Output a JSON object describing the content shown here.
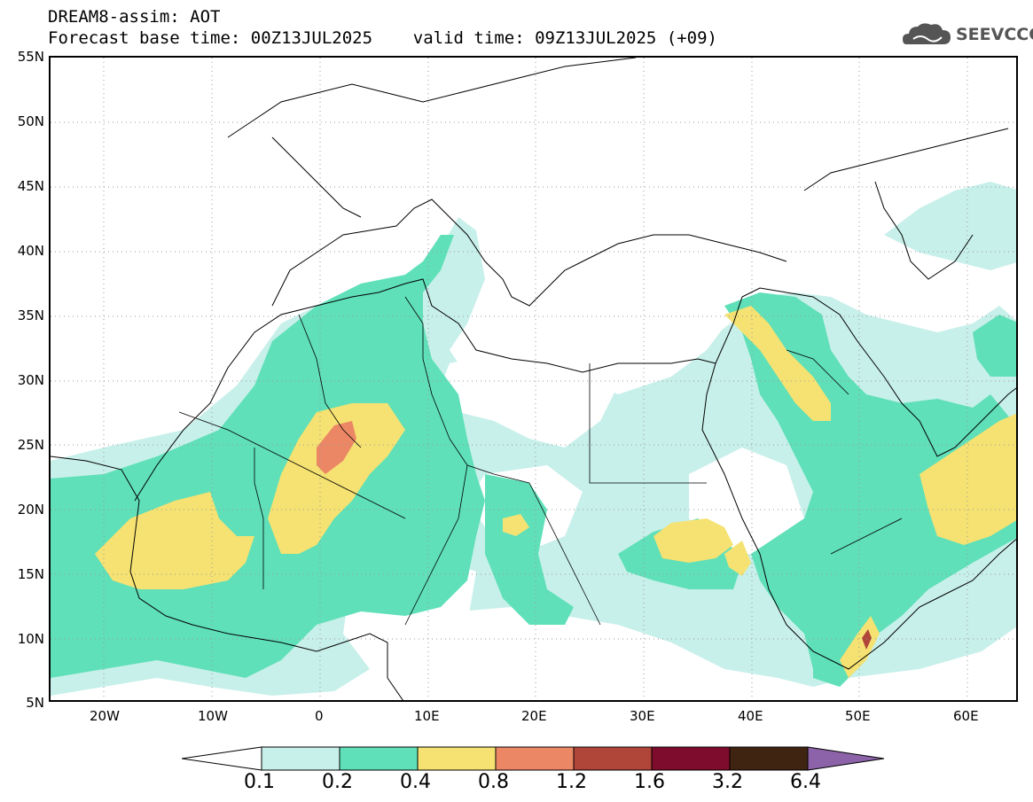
{
  "header": {
    "line1": "DREAM8-assim: AOT",
    "line2": "Forecast base time: 00Z13JUL2025    valid time: 09Z13JUL2025 (+09)"
  },
  "logo": {
    "text": "SEEVCCC",
    "icon": "cloud-icon"
  },
  "map": {
    "lat_labels": [
      "55N",
      "50N",
      "45N",
      "40N",
      "35N",
      "30N",
      "25N",
      "20N",
      "15N",
      "10N",
      "5N"
    ],
    "lon_labels": [
      "20W",
      "10W",
      "0",
      "10E",
      "20E",
      "30E",
      "40E",
      "50E",
      "60E"
    ]
  },
  "colorbar": {
    "labels": [
      "0.1",
      "0.2",
      "0.4",
      "0.8",
      "1.2",
      "1.6",
      "3.2",
      "6.4"
    ],
    "colors": [
      "#ffffff",
      "#c8f0ea",
      "#5fe0b8",
      "#f5e272",
      "#ec8766",
      "#b0453a",
      "#7e0c2c",
      "#3f2411",
      "#8c62a8"
    ]
  },
  "colors": {
    "c01": "#c8f0ea",
    "c02": "#5fe0b8",
    "c04": "#f5e272",
    "c08": "#ec8766",
    "c12": "#b0453a"
  }
}
